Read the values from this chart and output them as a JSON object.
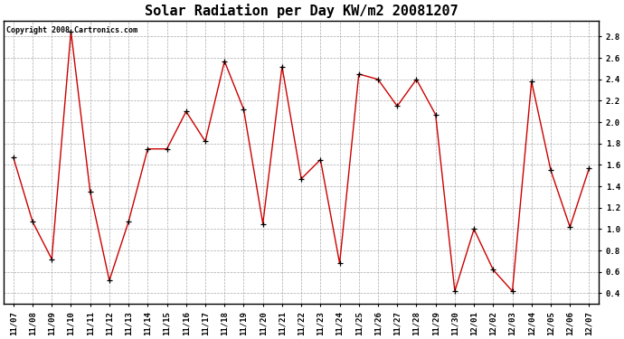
{
  "title": "Solar Radiation per Day KW/m2 20081207",
  "copyright_text": "Copyright 2008 Cartronics.com",
  "x_labels": [
    "11/07",
    "11/08",
    "11/09",
    "11/10",
    "11/11",
    "11/12",
    "11/13",
    "11/14",
    "11/15",
    "11/16",
    "11/17",
    "11/18",
    "11/19",
    "11/20",
    "11/21",
    "11/22",
    "11/23",
    "11/24",
    "11/25",
    "11/26",
    "11/27",
    "11/28",
    "11/29",
    "11/30",
    "12/01",
    "12/02",
    "12/03",
    "12/04",
    "12/05",
    "12/06",
    "12/07"
  ],
  "y_values": [
    1.67,
    1.07,
    0.72,
    2.85,
    1.35,
    0.52,
    1.07,
    1.75,
    1.75,
    2.1,
    1.82,
    2.57,
    2.12,
    1.05,
    2.52,
    1.47,
    1.65,
    0.68,
    2.45,
    2.4,
    2.15,
    2.4,
    2.07,
    0.42,
    1.0,
    0.62,
    0.42,
    2.38,
    1.55,
    1.02,
    1.57
  ],
  "line_color": "#cc0000",
  "marker_color": "#000000",
  "bg_color": "#ffffff",
  "grid_color": "#aaaaaa",
  "ylim": [
    0.3,
    2.95
  ],
  "yticks": [
    0.4,
    0.6,
    0.8,
    1.0,
    1.2,
    1.4,
    1.6,
    1.8,
    2.0,
    2.2,
    2.4,
    2.6,
    2.8
  ],
  "title_fontsize": 11,
  "tick_fontsize": 6.5,
  "copyright_fontsize": 6
}
